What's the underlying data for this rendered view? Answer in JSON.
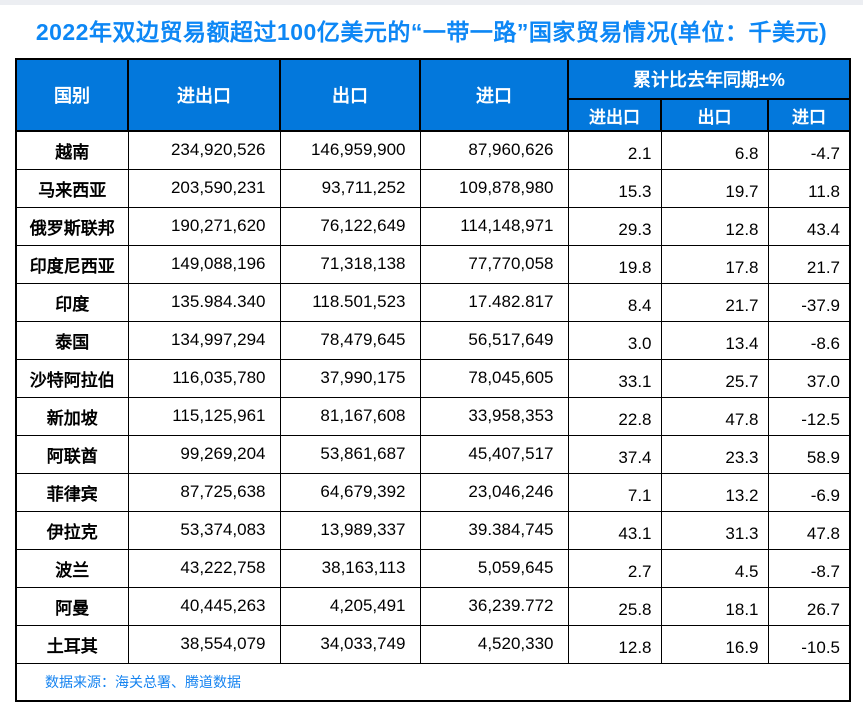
{
  "page": {
    "title": "2022年双边贸易额超过100亿美元的“一带一路”国家贸易情况(单位：千美元)",
    "source_note": "数据来源：海关总署、腾道数据"
  },
  "colors": {
    "header_bg": "#0378dc",
    "title": "#0d87f5",
    "source_text": "#1583f0",
    "border": "#000000",
    "top_strip": "#eceef2"
  },
  "table": {
    "headers": {
      "country": "国别",
      "total": "进出口",
      "export": "出口",
      "import": "进口",
      "yoy_group": "累计比去年同期±%",
      "yoy_total": "进出口",
      "yoy_export": "出口",
      "yoy_import": "进口"
    }
  },
  "chart_data": {
    "type": "table",
    "title": "2022年双边贸易额超过100亿美元的“一带一路”国家贸易情况(单位：千美元)",
    "unit": "千美元",
    "column_group": "累计比去年同期±%",
    "columns": [
      "国别",
      "进出口",
      "出口",
      "进口",
      "累计比去年同期±% 进出口",
      "累计比去年同期±% 出口",
      "累计比去年同期±% 进口"
    ],
    "rows": [
      [
        "越南",
        "234,920,526",
        "146,959,900",
        "87,960,626",
        "2.1",
        "6.8",
        "-4.7"
      ],
      [
        "马来西亚",
        "203,590,231",
        "93,711,252",
        "109,878,980",
        "15.3",
        "19.7",
        "11.8"
      ],
      [
        "俄罗斯联邦",
        "190,271,620",
        "76,122,649",
        "114,148,971",
        "29.3",
        "12.8",
        "43.4"
      ],
      [
        "印度尼西亚",
        "149,088,196",
        "71,318,138",
        "77,770,058",
        "19.8",
        "17.8",
        "21.7"
      ],
      [
        "印度",
        "135.984.340",
        "118.501,523",
        "17.482.817",
        "8.4",
        "21.7",
        "-37.9"
      ],
      [
        "泰国",
        "134,997,294",
        "78,479,645",
        "56,517,649",
        "3.0",
        "13.4",
        "-8.6"
      ],
      [
        "沙特阿拉伯",
        "116,035,780",
        "37,990,175",
        "78,045,605",
        "33.1",
        "25.7",
        "37.0"
      ],
      [
        "新加坡",
        "115,125,961",
        "81,167,608",
        "33,958,353",
        "22.8",
        "47.8",
        "-12.5"
      ],
      [
        "阿联酋",
        "99,269,204",
        "53,861,687",
        "45,407,517",
        "37.4",
        "23.3",
        "58.9"
      ],
      [
        "菲律宾",
        "87,725,638",
        "64,679,392",
        "23,046,246",
        "7.1",
        "13.2",
        "-6.9"
      ],
      [
        "伊拉克",
        "53,374,083",
        "13,989,337",
        "39.384,745",
        "43.1",
        "31.3",
        "47.8"
      ],
      [
        "波兰",
        "43,222,758",
        "38,163,113",
        "5,059,645",
        "2.7",
        "4.5",
        "-8.7"
      ],
      [
        "阿曼",
        "40,445,263",
        "4,205,491",
        "36,239.772",
        "25.8",
        "18.1",
        "26.7"
      ],
      [
        "土耳其",
        "38,554,079",
        "34,033,749",
        "4,520,330",
        "12.8",
        "16.9",
        "-10.5"
      ]
    ],
    "source": "数据来源：海关总署、腾道数据"
  }
}
